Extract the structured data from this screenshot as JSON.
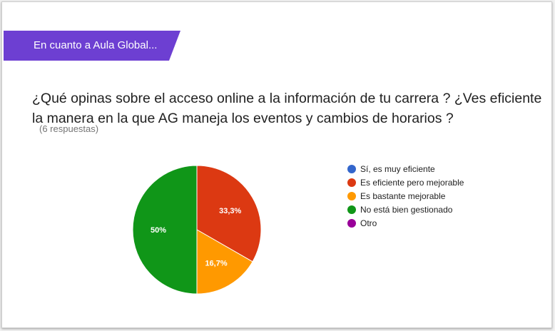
{
  "section": {
    "title": "En cuanto a Aula Global...",
    "color": "#6d3fd2"
  },
  "question": {
    "title": "¿Qué opinas sobre el acceso online a la información de tu carrera ? ¿Ves eficiente la manera en la que AG maneja los eventos y cambios de horarios ?",
    "responses": "(6 respuestas)"
  },
  "chart_data": {
    "type": "pie",
    "labels": [
      "Sí, es muy eficiente",
      "Es eficiente pero mejorable",
      "Es bastante mejorable",
      "No está bien gestionado",
      "Otro"
    ],
    "values": [
      0,
      33.3,
      16.7,
      50,
      0
    ],
    "value_labels": [
      "",
      "33,3%",
      "16,7%",
      "50%",
      ""
    ],
    "colors": [
      "#3366cc",
      "#dc3912",
      "#ff9900",
      "#109618",
      "#990099"
    ],
    "legend_position": "right"
  }
}
